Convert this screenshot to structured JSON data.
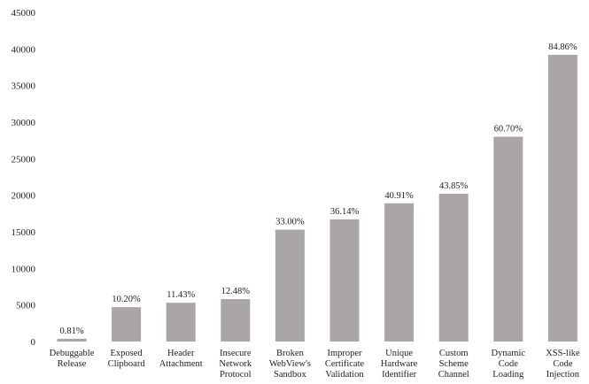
{
  "chart_data": {
    "type": "bar",
    "title": "",
    "xlabel": "",
    "ylabel": "",
    "ylim": [
      0,
      45000
    ],
    "yticks": [
      0,
      5000,
      10000,
      15000,
      20000,
      25000,
      30000,
      35000,
      40000,
      45000
    ],
    "grid": false,
    "legend": "none",
    "bar_color": "#aaa5a6",
    "categories": [
      [
        "Debuggable",
        "Release"
      ],
      [
        "Exposed",
        "Clipboard"
      ],
      [
        "Header",
        "Attachment"
      ],
      [
        "Insecure",
        "Network",
        "Protocol"
      ],
      [
        "Broken",
        "WebView's",
        "Sandbox"
      ],
      [
        "Improper",
        "Certificate",
        "Validation"
      ],
      [
        "Unique",
        "Hardware",
        "Identifier"
      ],
      [
        "Custom",
        "Scheme",
        "Channel"
      ],
      [
        "Dynamic",
        "Code",
        "Loading"
      ],
      [
        "XSS-like",
        "Code",
        "Injection"
      ]
    ],
    "values": [
      380,
      4700,
      5300,
      5800,
      15300,
      16700,
      18900,
      20200,
      28000,
      39200
    ],
    "data_labels": [
      "0.81%",
      "10.20%",
      "11.43%",
      "12.48%",
      "33.00%",
      "36.14%",
      "40.91%",
      "43.85%",
      "60.70%",
      "84.86%"
    ]
  }
}
